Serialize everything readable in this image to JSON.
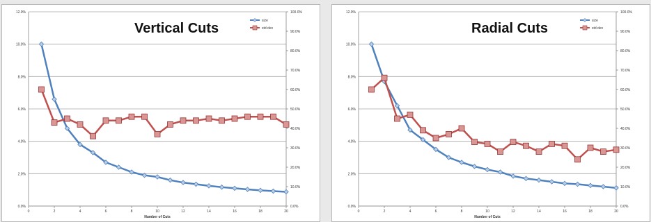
{
  "chart_data": [
    {
      "type": "line",
      "title": "Vertical Cuts",
      "xlabel": "Number of Cuts",
      "x": [
        1,
        2,
        3,
        4,
        5,
        6,
        7,
        8,
        9,
        10,
        11,
        12,
        13,
        14,
        15,
        16,
        17,
        18,
        19,
        20
      ],
      "x_ticks": [
        0,
        2,
        4,
        6,
        8,
        10,
        12,
        14,
        16,
        18,
        20
      ],
      "x_tick_labels": [
        "0",
        "2",
        "4",
        "6",
        "8",
        "10",
        "12",
        "14",
        "16",
        "18",
        "20"
      ],
      "xlim": [
        0,
        20
      ],
      "ylim": [
        0,
        12
      ],
      "y_ticks": [
        0,
        2,
        4,
        6,
        8,
        10,
        12
      ],
      "y_tick_labels": [
        "0.0%",
        "2.0%",
        "4.0%",
        "6.0%",
        "8.0%",
        "10.0%",
        "12.0%"
      ],
      "y2lim": [
        0,
        100
      ],
      "y2_ticks": [
        0,
        10,
        20,
        30,
        40,
        50,
        60,
        70,
        80,
        90,
        100
      ],
      "y2_tick_labels": [
        "0.0%",
        "10.0%",
        "20.0%",
        "30.0%",
        "40.0%",
        "50.0%",
        "60.0%",
        "70.0%",
        "80.0%",
        "90.0%",
        "100.0%"
      ],
      "grid": true,
      "legend": "top-right",
      "series": [
        {
          "name": "size",
          "axis": "left",
          "color": "#4f81bd",
          "values": [
            10.0,
            6.6,
            4.8,
            3.8,
            3.3,
            2.7,
            2.4,
            2.1,
            1.9,
            1.8,
            1.6,
            1.45,
            1.35,
            1.25,
            1.17,
            1.1,
            1.03,
            0.97,
            0.92,
            0.88
          ]
        },
        {
          "name": "std dev",
          "axis": "right",
          "color": "#c0504d",
          "values": [
            60,
            43,
            45,
            42,
            36,
            44,
            44,
            46,
            46,
            37,
            42,
            44,
            44,
            45,
            44,
            45,
            46,
            46,
            46,
            42
          ]
        }
      ]
    },
    {
      "type": "line",
      "title": "Radial Cuts",
      "xlabel": "Number of Cuts",
      "x": [
        1,
        2,
        3,
        4,
        5,
        6,
        7,
        8,
        9,
        10,
        11,
        12,
        13,
        14,
        15,
        16,
        17,
        18,
        19,
        20
      ],
      "x_ticks": [
        0,
        2,
        4,
        6,
        8,
        10,
        12,
        14,
        16,
        18,
        20
      ],
      "x_tick_labels": [
        "0",
        "2",
        "4",
        "6",
        "8",
        "10",
        "12",
        "14",
        "16",
        "18",
        "20"
      ],
      "xlim": [
        0,
        20
      ],
      "ylim": [
        0,
        12
      ],
      "y_ticks": [
        0,
        2,
        4,
        6,
        8,
        10,
        12
      ],
      "y_tick_labels": [
        "0.0%",
        "2.0%",
        "4.0%",
        "6.0%",
        "8.0%",
        "10.0%",
        "12.0%"
      ],
      "y2lim": [
        0,
        100
      ],
      "y2_ticks": [
        0,
        10,
        20,
        30,
        40,
        50,
        60,
        70,
        80,
        90,
        100
      ],
      "y2_tick_labels": [
        "0.0%",
        "10.0%",
        "20.0%",
        "30.0%",
        "40.0%",
        "50.0%",
        "60.0%",
        "70.0%",
        "80.0%",
        "90.0%",
        "100.0%"
      ],
      "grid": true,
      "legend": "top-right",
      "series": [
        {
          "name": "size",
          "axis": "left",
          "color": "#4f81bd",
          "values": [
            10.0,
            7.7,
            6.2,
            4.7,
            4.1,
            3.5,
            3.0,
            2.7,
            2.45,
            2.25,
            2.1,
            1.85,
            1.7,
            1.6,
            1.5,
            1.4,
            1.35,
            1.27,
            1.2,
            1.12
          ]
        },
        {
          "name": "std dev",
          "axis": "right",
          "color": "#c0504d",
          "values": [
            60,
            66,
            45,
            47,
            39,
            35,
            37,
            40,
            33,
            32,
            28,
            33,
            31,
            28,
            32,
            31,
            24,
            30,
            28,
            29
          ]
        }
      ]
    }
  ]
}
